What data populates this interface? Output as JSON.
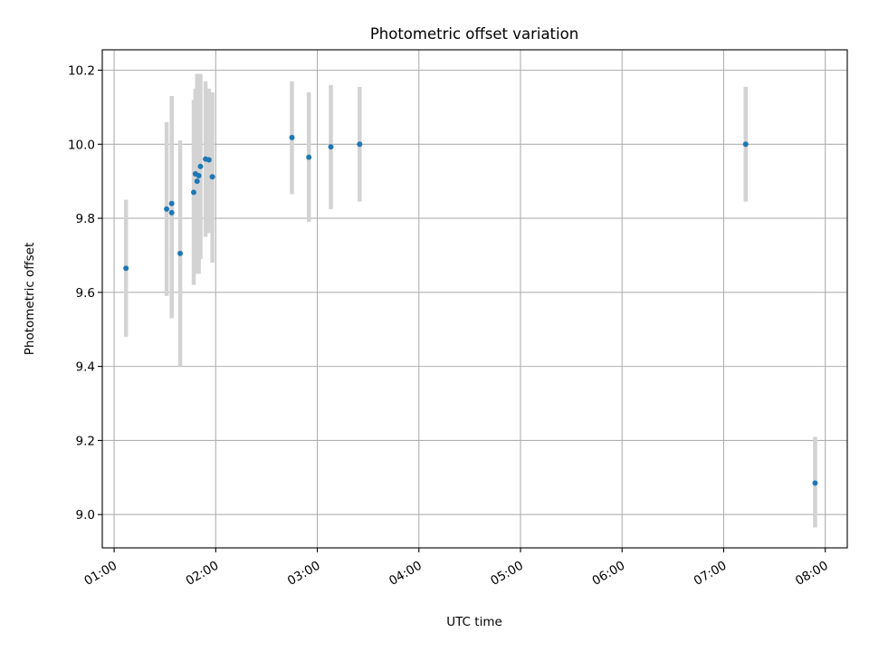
{
  "chart_data": {
    "type": "scatter",
    "title": "Photometric offset variation",
    "xlabel": "UTC time",
    "ylabel": "Photometric offset",
    "grid": true,
    "x_type": "time",
    "xlim": [
      "00:53",
      "08:13"
    ],
    "ylim": [
      8.91,
      10.255
    ],
    "xticks": [
      "01:00",
      "02:00",
      "03:00",
      "04:00",
      "05:00",
      "06:00",
      "07:00",
      "08:00"
    ],
    "yticks": [
      9.0,
      9.2,
      9.4,
      9.6,
      9.8,
      10.0,
      10.2
    ],
    "point_color": "#1f77b4",
    "errorbar_color": "#d3d3d3",
    "points": [
      {
        "x": "01:07",
        "y": 9.665,
        "ylow": 9.48,
        "yhigh": 9.85
      },
      {
        "x": "01:31",
        "y": 9.825,
        "ylow": 9.59,
        "yhigh": 10.06
      },
      {
        "x": "01:34",
        "y": 9.84,
        "ylow": 9.53,
        "yhigh": 10.13
      },
      {
        "x": "01:34",
        "y": 9.815,
        "ylow": 9.53,
        "yhigh": 10.13
      },
      {
        "x": "01:39",
        "y": 9.705,
        "ylow": 9.4,
        "yhigh": 10.01
      },
      {
        "x": "01:47",
        "y": 9.87,
        "ylow": 9.62,
        "yhigh": 10.12
      },
      {
        "x": "01:48",
        "y": 9.92,
        "ylow": 9.69,
        "yhigh": 10.15
      },
      {
        "x": "01:49",
        "y": 9.9,
        "ylow": 9.65,
        "yhigh": 10.19
      },
      {
        "x": "01:50",
        "y": 9.915,
        "ylow": 9.65,
        "yhigh": 10.19
      },
      {
        "x": "01:51",
        "y": 9.94,
        "ylow": 9.69,
        "yhigh": 10.19
      },
      {
        "x": "01:54",
        "y": 9.96,
        "ylow": 9.75,
        "yhigh": 10.17
      },
      {
        "x": "01:56",
        "y": 9.958,
        "ylow": 9.76,
        "yhigh": 10.15
      },
      {
        "x": "01:58",
        "y": 9.912,
        "ylow": 9.68,
        "yhigh": 10.14
      },
      {
        "x": "02:45",
        "y": 10.018,
        "ylow": 9.865,
        "yhigh": 10.17
      },
      {
        "x": "02:55",
        "y": 9.965,
        "ylow": 9.79,
        "yhigh": 10.14
      },
      {
        "x": "03:08",
        "y": 9.993,
        "ylow": 9.825,
        "yhigh": 10.16
      },
      {
        "x": "03:25",
        "y": 10.0,
        "ylow": 9.845,
        "yhigh": 10.155
      },
      {
        "x": "07:13",
        "y": 10.0,
        "ylow": 9.845,
        "yhigh": 10.155
      },
      {
        "x": "07:54",
        "y": 9.085,
        "ylow": 8.965,
        "yhigh": 9.21
      }
    ]
  }
}
